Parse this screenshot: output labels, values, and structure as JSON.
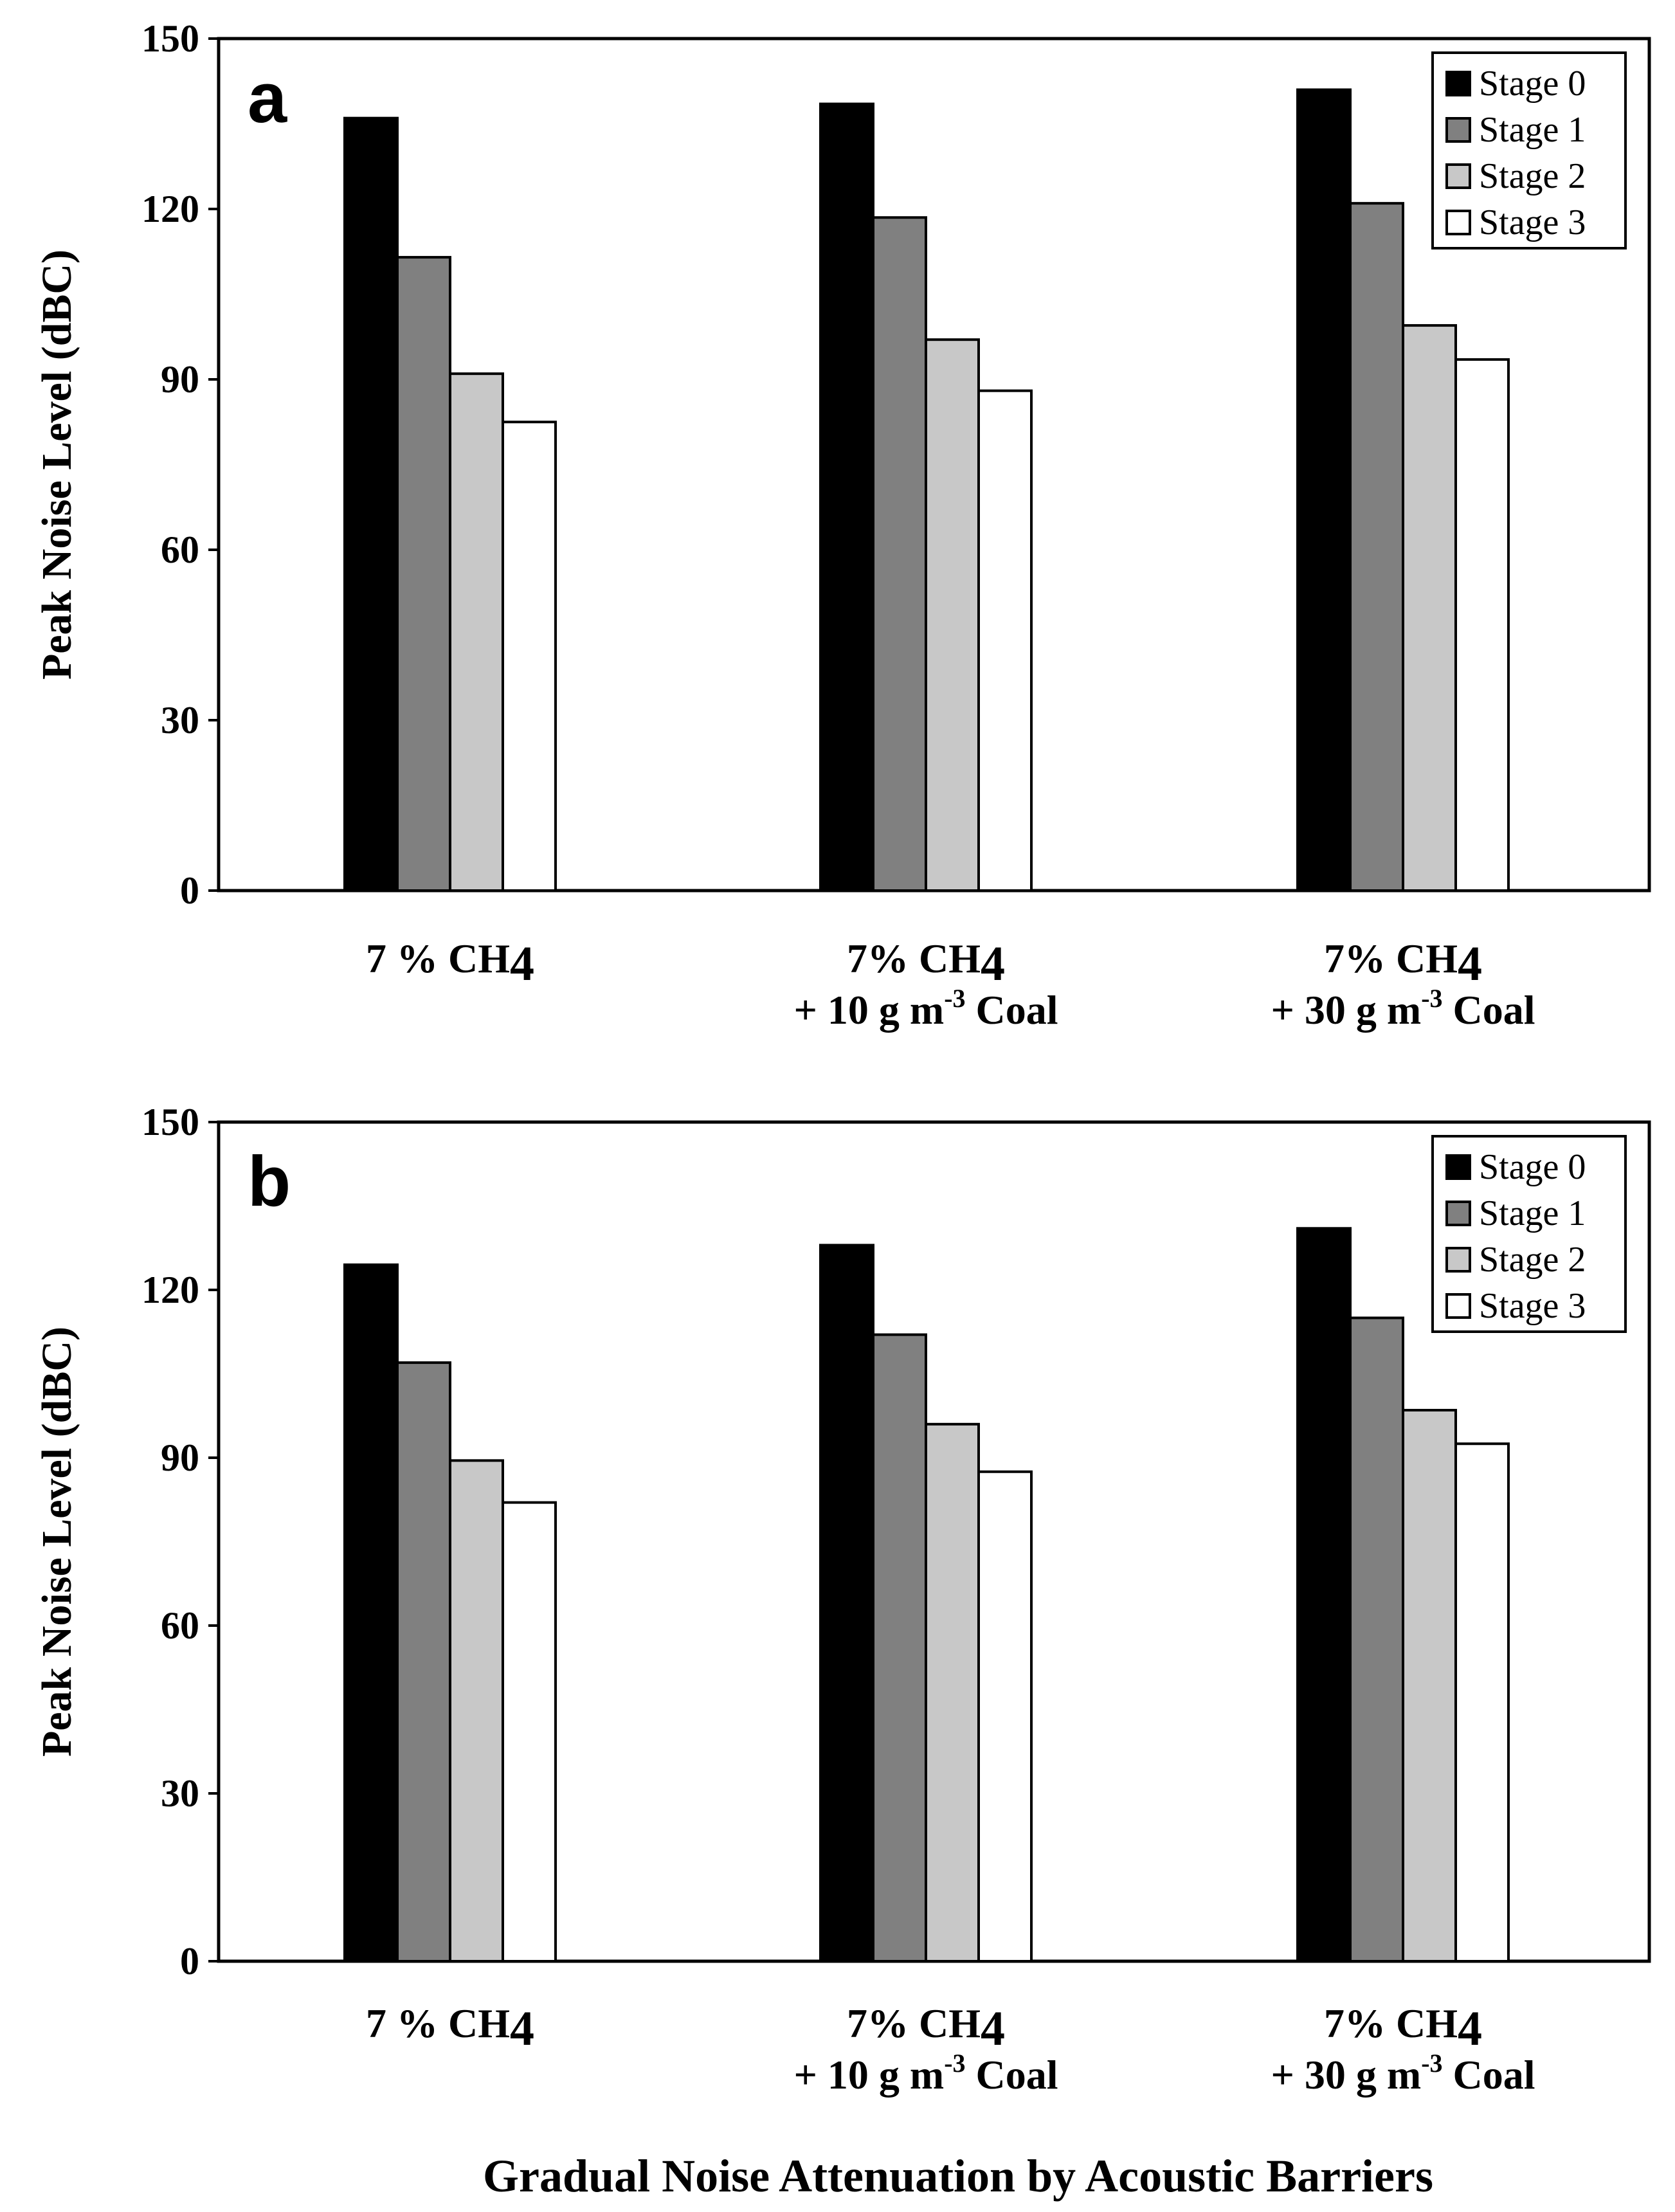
{
  "figure": {
    "x_title": "Gradual Noise Attenuation by Acoustic Barriers"
  },
  "styles": {
    "series_colors": [
      "#000000",
      "#808080",
      "#c8c8c8",
      "#ffffff"
    ]
  },
  "chart_data": [
    {
      "type": "bar",
      "panel_label": "a",
      "ylabel": "Peak Noise Level (dBC)",
      "ylim": [
        0,
        150
      ],
      "yticks": [
        "0",
        "30",
        "60",
        "90",
        "120",
        "150"
      ],
      "legend_position": "top-right",
      "categories": [
        {
          "line1_main": "7 % CH",
          "line1_sub": "4",
          "line2_pre": "",
          "line2_sup": "",
          "line2_post": ""
        },
        {
          "line1_main": "7% CH",
          "line1_sub": "4",
          "line2_pre": "+ 10 g m",
          "line2_sup": "-3",
          "line2_post": " Coal"
        },
        {
          "line1_main": "7% CH",
          "line1_sub": "4",
          "line2_pre": "+ 30 g m",
          "line2_sup": "-3",
          "line2_post": " Coal"
        }
      ],
      "series": [
        {
          "name": "Stage 0",
          "values": [
            136,
            138.5,
            141
          ]
        },
        {
          "name": "Stage 1",
          "values": [
            111.5,
            118.5,
            121
          ]
        },
        {
          "name": "Stage 2",
          "values": [
            91,
            97,
            99.5
          ]
        },
        {
          "name": "Stage 3",
          "values": [
            82.5,
            88,
            93.5
          ]
        }
      ]
    },
    {
      "type": "bar",
      "panel_label": "b",
      "ylabel": "Peak Noise Level (dBC)",
      "ylim": [
        0,
        150
      ],
      "yticks": [
        "0",
        "30",
        "60",
        "90",
        "120",
        "150"
      ],
      "legend_position": "top-right",
      "categories": [
        {
          "line1_main": "7 % CH",
          "line1_sub": "4",
          "line2_pre": "",
          "line2_sup": "",
          "line2_post": ""
        },
        {
          "line1_main": "7% CH",
          "line1_sub": "4",
          "line2_pre": "+ 10 g m",
          "line2_sup": "-3",
          "line2_post": " Coal"
        },
        {
          "line1_main": "7% CH",
          "line1_sub": "4",
          "line2_pre": "+ 30 g m",
          "line2_sup": "-3",
          "line2_post": " Coal"
        }
      ],
      "series": [
        {
          "name": "Stage 0",
          "values": [
            124.5,
            128,
            131
          ]
        },
        {
          "name": "Stage 1",
          "values": [
            107,
            112,
            115
          ]
        },
        {
          "name": "Stage 2",
          "values": [
            89.5,
            96,
            98.5
          ]
        },
        {
          "name": "Stage 3",
          "values": [
            82,
            87.5,
            92.5
          ]
        }
      ]
    }
  ]
}
